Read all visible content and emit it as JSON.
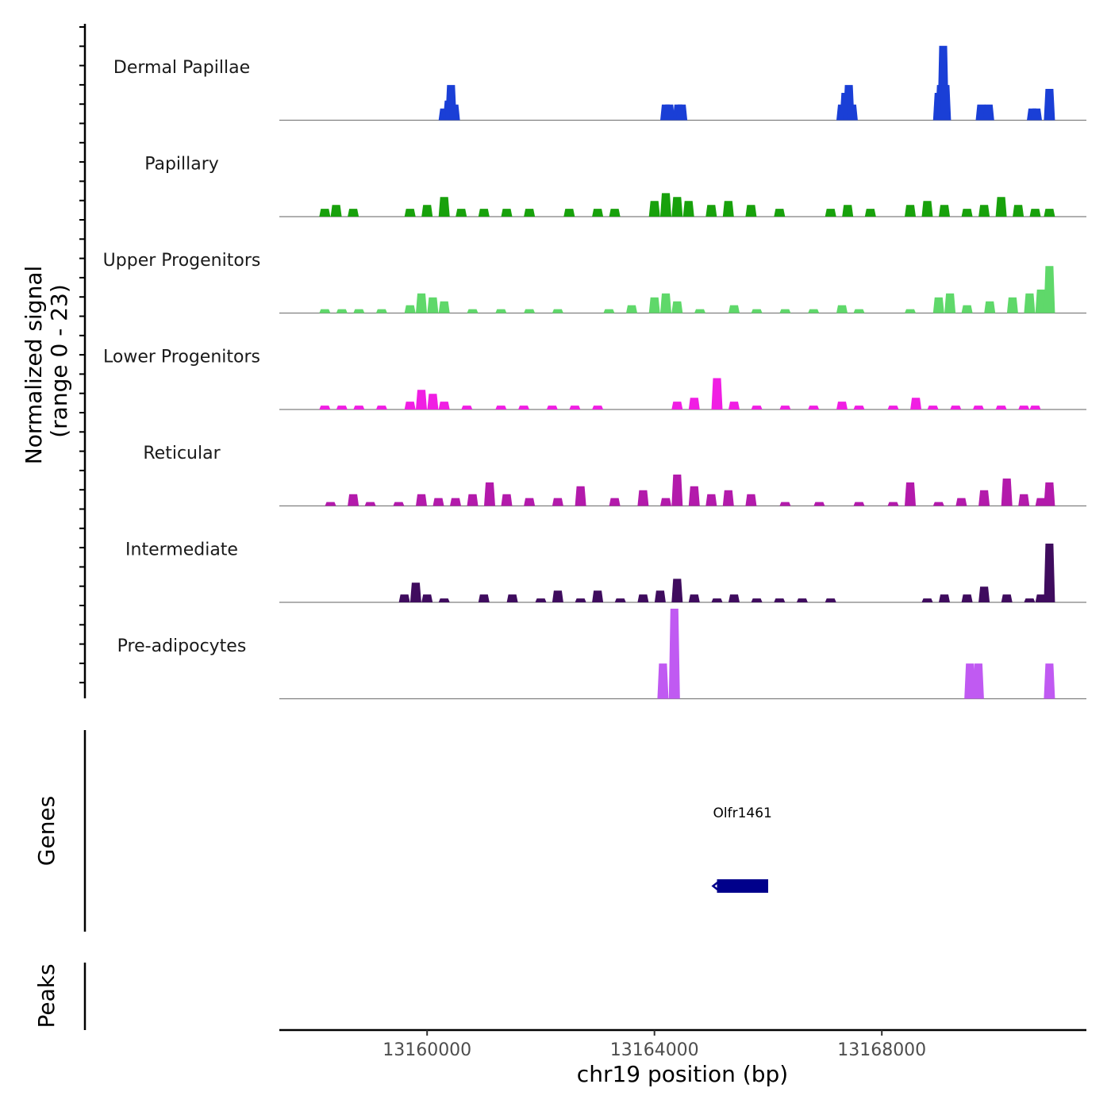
{
  "chart_data": {
    "type": "area",
    "chromosome": "chr19",
    "xlabel": "chr19 position (bp)",
    "ylabel_line1": "Normalized signal",
    "ylabel_line2": "(range 0 - 23)",
    "y_range": [
      0,
      23
    ],
    "x_range": [
      13157400,
      13171600
    ],
    "x_ticks": [
      13160000,
      13164000,
      13168000
    ],
    "x_tick_labels": [
      "13160000",
      "13164000",
      "13168000"
    ],
    "series": [
      {
        "name": "Dermal Papillae",
        "color": "#1a3fd6",
        "points": [
          [
            13160300,
            3
          ],
          [
            13160380,
            5
          ],
          [
            13160420,
            9
          ],
          [
            13160480,
            4
          ],
          [
            13164200,
            4
          ],
          [
            13164260,
            4
          ],
          [
            13164420,
            4
          ],
          [
            13164480,
            4
          ],
          [
            13167300,
            4
          ],
          [
            13167360,
            7
          ],
          [
            13167420,
            9
          ],
          [
            13167480,
            4
          ],
          [
            13169000,
            7
          ],
          [
            13169040,
            9
          ],
          [
            13169080,
            19
          ],
          [
            13169120,
            9
          ],
          [
            13169750,
            4
          ],
          [
            13169880,
            4
          ],
          [
            13170650,
            3
          ],
          [
            13170720,
            3
          ],
          [
            13170950,
            8
          ]
        ]
      },
      {
        "name": "Papillary",
        "color": "#18a10c",
        "points": [
          [
            13158200,
            2
          ],
          [
            13158400,
            3
          ],
          [
            13158700,
            2
          ],
          [
            13159700,
            2
          ],
          [
            13160000,
            3
          ],
          [
            13160300,
            5
          ],
          [
            13160600,
            2
          ],
          [
            13161000,
            2
          ],
          [
            13161400,
            2
          ],
          [
            13161800,
            2
          ],
          [
            13162500,
            2
          ],
          [
            13163000,
            2
          ],
          [
            13163300,
            2
          ],
          [
            13164000,
            4
          ],
          [
            13164200,
            6
          ],
          [
            13164400,
            5
          ],
          [
            13164600,
            4
          ],
          [
            13165000,
            3
          ],
          [
            13165300,
            4
          ],
          [
            13165700,
            3
          ],
          [
            13166200,
            2
          ],
          [
            13167100,
            2
          ],
          [
            13167400,
            3
          ],
          [
            13167800,
            2
          ],
          [
            13168500,
            3
          ],
          [
            13168800,
            4
          ],
          [
            13169100,
            3
          ],
          [
            13169500,
            2
          ],
          [
            13169800,
            3
          ],
          [
            13170100,
            5
          ],
          [
            13170400,
            3
          ],
          [
            13170700,
            2
          ],
          [
            13170950,
            2
          ]
        ]
      },
      {
        "name": "Upper Progenitors",
        "color": "#5fd86a",
        "points": [
          [
            13158200,
            1
          ],
          [
            13158500,
            1
          ],
          [
            13158800,
            1
          ],
          [
            13159200,
            1
          ],
          [
            13159700,
            2
          ],
          [
            13159900,
            5
          ],
          [
            13160100,
            4
          ],
          [
            13160300,
            3
          ],
          [
            13160800,
            1
          ],
          [
            13161300,
            1
          ],
          [
            13161800,
            1
          ],
          [
            13162300,
            1
          ],
          [
            13163200,
            1
          ],
          [
            13163600,
            2
          ],
          [
            13164000,
            4
          ],
          [
            13164200,
            5
          ],
          [
            13164400,
            3
          ],
          [
            13164800,
            1
          ],
          [
            13165400,
            2
          ],
          [
            13165800,
            1
          ],
          [
            13166300,
            1
          ],
          [
            13166800,
            1
          ],
          [
            13167300,
            2
          ],
          [
            13167600,
            1
          ],
          [
            13168500,
            1
          ],
          [
            13169000,
            4
          ],
          [
            13169200,
            5
          ],
          [
            13169500,
            2
          ],
          [
            13169900,
            3
          ],
          [
            13170300,
            4
          ],
          [
            13170600,
            5
          ],
          [
            13170800,
            6
          ],
          [
            13170950,
            12
          ]
        ]
      },
      {
        "name": "Lower Progenitors",
        "color": "#f01ee3",
        "points": [
          [
            13158200,
            1
          ],
          [
            13158500,
            1
          ],
          [
            13158800,
            1
          ],
          [
            13159200,
            1
          ],
          [
            13159700,
            2
          ],
          [
            13159900,
            5
          ],
          [
            13160100,
            4
          ],
          [
            13160300,
            2
          ],
          [
            13160700,
            1
          ],
          [
            13161300,
            1
          ],
          [
            13161700,
            1
          ],
          [
            13162200,
            1
          ],
          [
            13162600,
            1
          ],
          [
            13163000,
            1
          ],
          [
            13164400,
            2
          ],
          [
            13164700,
            3
          ],
          [
            13165100,
            8
          ],
          [
            13165400,
            2
          ],
          [
            13165800,
            1
          ],
          [
            13166300,
            1
          ],
          [
            13166800,
            1
          ],
          [
            13167300,
            2
          ],
          [
            13167600,
            1
          ],
          [
            13168200,
            1
          ],
          [
            13168600,
            3
          ],
          [
            13168900,
            1
          ],
          [
            13169300,
            1
          ],
          [
            13169700,
            1
          ],
          [
            13170100,
            1
          ],
          [
            13170500,
            1
          ],
          [
            13170700,
            1
          ]
        ]
      },
      {
        "name": "Reticular",
        "color": "#b31aab",
        "points": [
          [
            13158300,
            1
          ],
          [
            13158700,
            3
          ],
          [
            13159000,
            1
          ],
          [
            13159500,
            1
          ],
          [
            13159900,
            3
          ],
          [
            13160200,
            2
          ],
          [
            13160500,
            2
          ],
          [
            13160800,
            3
          ],
          [
            13161100,
            6
          ],
          [
            13161400,
            3
          ],
          [
            13161800,
            2
          ],
          [
            13162300,
            2
          ],
          [
            13162700,
            5
          ],
          [
            13163300,
            2
          ],
          [
            13163800,
            4
          ],
          [
            13164200,
            2
          ],
          [
            13164400,
            8
          ],
          [
            13164700,
            5
          ],
          [
            13165000,
            3
          ],
          [
            13165300,
            4
          ],
          [
            13165700,
            3
          ],
          [
            13166300,
            1
          ],
          [
            13166900,
            1
          ],
          [
            13167600,
            1
          ],
          [
            13168200,
            1
          ],
          [
            13168500,
            6
          ],
          [
            13169000,
            1
          ],
          [
            13169400,
            2
          ],
          [
            13169800,
            4
          ],
          [
            13170200,
            7
          ],
          [
            13170500,
            3
          ],
          [
            13170800,
            2
          ],
          [
            13170950,
            6
          ]
        ]
      },
      {
        "name": "Intermediate",
        "color": "#3f0c5e",
        "points": [
          [
            13159600,
            2
          ],
          [
            13159800,
            5
          ],
          [
            13160000,
            2
          ],
          [
            13160300,
            1
          ],
          [
            13161000,
            2
          ],
          [
            13161500,
            2
          ],
          [
            13162000,
            1
          ],
          [
            13162300,
            3
          ],
          [
            13162700,
            1
          ],
          [
            13163000,
            3
          ],
          [
            13163400,
            1
          ],
          [
            13163800,
            2
          ],
          [
            13164100,
            3
          ],
          [
            13164400,
            6
          ],
          [
            13164700,
            2
          ],
          [
            13165100,
            1
          ],
          [
            13165400,
            2
          ],
          [
            13165800,
            1
          ],
          [
            13166200,
            1
          ],
          [
            13166600,
            1
          ],
          [
            13167100,
            1
          ],
          [
            13168800,
            1
          ],
          [
            13169100,
            2
          ],
          [
            13169500,
            2
          ],
          [
            13169800,
            4
          ],
          [
            13170200,
            2
          ],
          [
            13170600,
            1
          ],
          [
            13170800,
            2
          ],
          [
            13170950,
            15
          ]
        ]
      },
      {
        "name": "Pre-adipocytes",
        "color": "#c05af2",
        "points": [
          [
            13164150,
            9
          ],
          [
            13164350,
            23
          ],
          [
            13169550,
            9
          ],
          [
            13169700,
            9
          ],
          [
            13170950,
            9
          ]
        ]
      }
    ],
    "genes": [
      {
        "name": "Olfr1461",
        "start": 13165100,
        "end": 13166000,
        "strand": "-",
        "color": "#00008b"
      }
    ],
    "track_titles": {
      "genes": "Genes",
      "peaks": "Peaks"
    }
  }
}
